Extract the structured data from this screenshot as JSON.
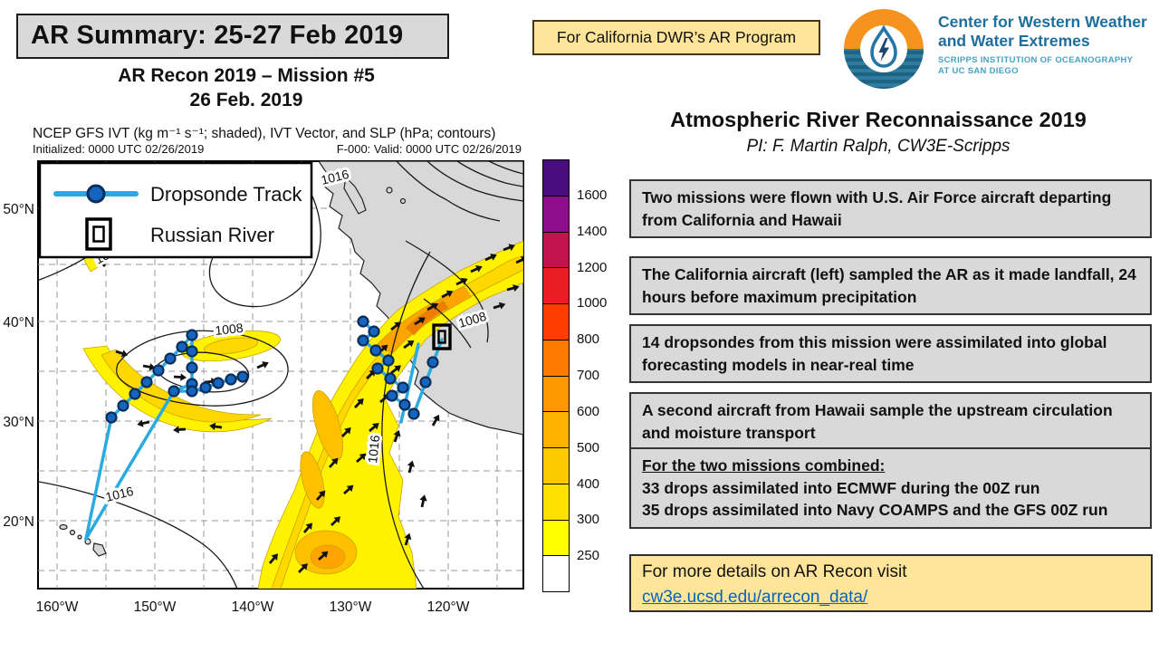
{
  "header": {
    "title": "AR Summary: 25-27 Feb 2019",
    "mission": "AR Recon 2019 – Mission #5",
    "date": "26 Feb. 2019",
    "dwr_banner": "For California DWR’s AR Program"
  },
  "logo": {
    "org_line1": "Center for Western Weather",
    "org_line2": "and Water Extremes",
    "sub_line1": "SCRIPPS INSTITUTION OF OCEANOGRAPHY",
    "sub_line2": "AT UC SAN DIEGO"
  },
  "map": {
    "title": "NCEP GFS IVT (kg m⁻¹ s⁻¹; shaded), IVT Vector, and SLP (hPa; contours)",
    "initialized": "Initialized: 0000 UTC 02/26/2019",
    "valid": "F-000: Valid: 0000 UTC 02/26/2019",
    "legend": {
      "dropsonde": "Dropsonde Track",
      "russian_river": "Russian River"
    },
    "x_ticks": [
      "160°W",
      "150°W",
      "140°W",
      "130°W",
      "120°W"
    ],
    "y_ticks": [
      "50°N",
      "40°N",
      "30°N",
      "20°N"
    ],
    "contour_labels": {
      "isobar_1016": "1016",
      "isobar_1008": "1008"
    },
    "colorbar": {
      "labels": [
        "1600",
        "1400",
        "1200",
        "1000",
        "800",
        "700",
        "600",
        "500",
        "400",
        "300",
        "250"
      ],
      "colors": [
        "#4a0d7f",
        "#8e0d8e",
        "#c3134e",
        "#ec1c24",
        "#ff3d00",
        "#ff7a00",
        "#ff9700",
        "#ffb300",
        "#ffc900",
        "#ffe100",
        "#ffff00",
        "#ffffff"
      ]
    }
  },
  "right_panel": {
    "heading": "Atmospheric River Reconnaissance 2019",
    "pi": "PI: F. Martin Ralph, CW3E-Scripps",
    "info_boxes": [
      "Two missions were flown with U.S. Air Force aircraft departing from California and Hawaii",
      "The California aircraft (left) sampled the AR as it made landfall, 24 hours before maximum precipitation",
      "14 dropsondes from this mission were assimilated into global forecasting models in near-real time",
      "A second aircraft from Hawaii sample the upstream circulation and moisture transport"
    ],
    "combined": {
      "heading": "For the two missions combined:",
      "line1": "33 drops assimilated into ECMWF during the 00Z run",
      "line2": "35 drops assimilated into Navy COAMPS and the GFS 00Z run"
    },
    "footer": {
      "text": "For more details on AR Recon visit",
      "link": "cw3e.ucsd.edu/arrecon_data/"
    }
  }
}
